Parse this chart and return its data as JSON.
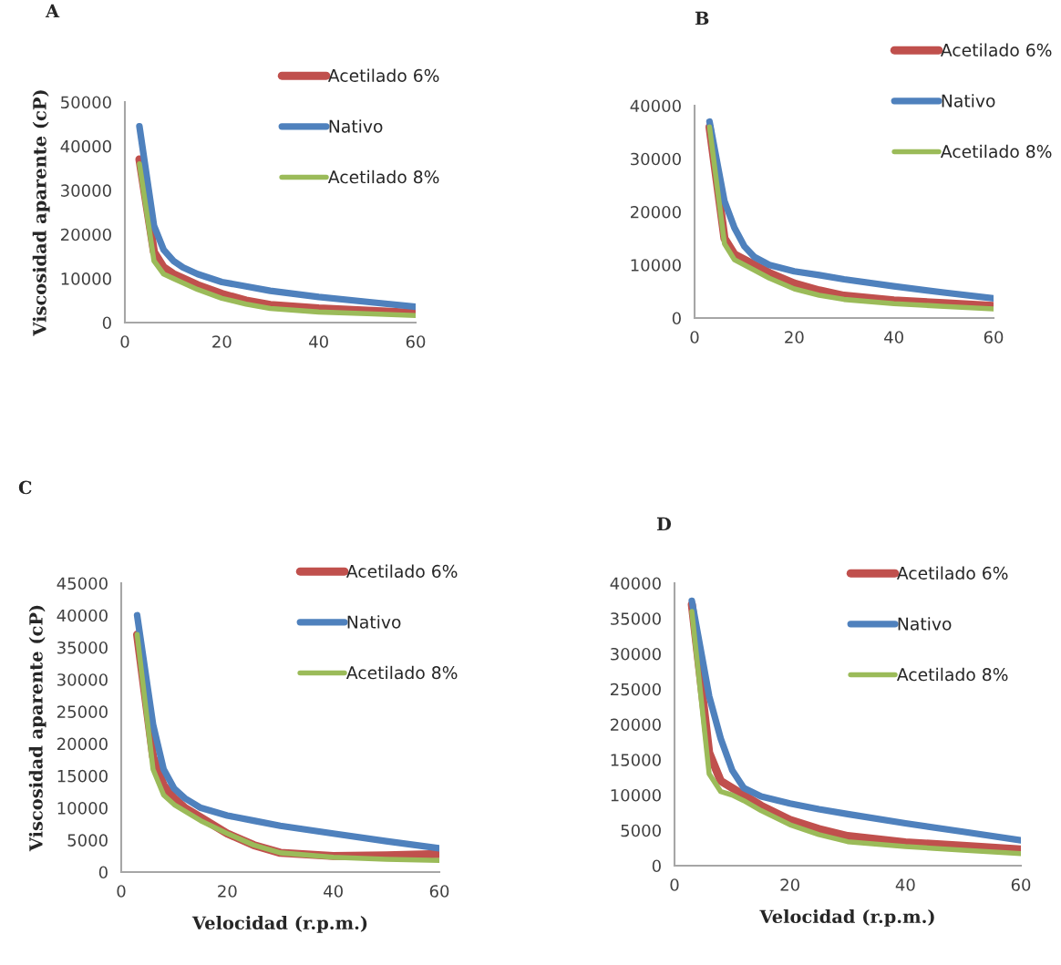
{
  "chart_data": [
    {
      "type": "line",
      "title": "A",
      "ylabel": "Viscosidad aparente (cP)",
      "x": [
        3,
        6,
        8,
        10,
        12,
        15,
        20,
        25,
        30,
        40,
        50,
        60
      ],
      "xlim": [
        0,
        60
      ],
      "xticks": [
        0,
        20,
        40,
        60
      ],
      "ylim": [
        0,
        50000
      ],
      "yticks": [
        0,
        10000,
        20000,
        30000,
        40000,
        50000
      ],
      "legend": "top right",
      "grid": false,
      "marker": "none",
      "line_style": "solid",
      "series": [
        {
          "name": "Acetilado 6%",
          "color": "#c0504d",
          "values": [
            37000,
            16000,
            12500,
            11000,
            10000,
            8500,
            6500,
            5000,
            4000,
            3200,
            2700,
            2200
          ]
        },
        {
          "name": "Nativo",
          "color": "#4f81bd",
          "values": [
            44500,
            22000,
            16500,
            14000,
            12500,
            11000,
            9200,
            8200,
            7200,
            5800,
            4700,
            3600
          ]
        },
        {
          "name": "Acetilado 8%",
          "color": "#9bbb59",
          "values": [
            36000,
            14000,
            11000,
            10000,
            9000,
            7500,
            5500,
            4200,
            3200,
            2400,
            2000,
            1600
          ]
        }
      ]
    },
    {
      "type": "line",
      "title": "B",
      "x": [
        3,
        6,
        8,
        10,
        12,
        15,
        20,
        25,
        30,
        40,
        50,
        60
      ],
      "xlim": [
        0,
        60
      ],
      "xticks": [
        0,
        20,
        40,
        60
      ],
      "ylim": [
        0,
        40000
      ],
      "yticks": [
        0,
        10000,
        20000,
        30000,
        40000
      ],
      "legend": "top right",
      "grid": false,
      "marker": "none",
      "line_style": "solid",
      "series": [
        {
          "name": "Acetilado 6%",
          "color": "#c0504d",
          "values": [
            36000,
            15000,
            12000,
            11000,
            10000,
            8500,
            6500,
            5200,
            4200,
            3300,
            2800,
            2300
          ]
        },
        {
          "name": "Nativo",
          "color": "#4f81bd",
          "values": [
            37000,
            22000,
            17000,
            13500,
            11500,
            10000,
            8800,
            8100,
            7300,
            6000,
            4800,
            3700
          ]
        },
        {
          "name": "Acetilado 8%",
          "color": "#9bbb59",
          "values": [
            36000,
            14000,
            11000,
            10000,
            9000,
            7500,
            5500,
            4300,
            3500,
            2700,
            2200,
            1700
          ]
        }
      ]
    },
    {
      "type": "line",
      "title": "C",
      "ylabel": "Viscosidad aparente (cP)",
      "xlabel": "Velocidad (r.p.m.)",
      "x": [
        3,
        6,
        8,
        10,
        12,
        15,
        20,
        25,
        30,
        40,
        50,
        60
      ],
      "xlim": [
        0,
        60
      ],
      "xticks": [
        0,
        20,
        40,
        60
      ],
      "ylim": [
        0,
        45000
      ],
      "yticks": [
        0,
        5000,
        10000,
        15000,
        20000,
        25000,
        30000,
        35000,
        40000,
        45000
      ],
      "legend": "top right",
      "grid": false,
      "marker": "none",
      "line_style": "solid",
      "series": [
        {
          "name": "Acetilado 6%",
          "color": "#c0504d",
          "values": [
            37000,
            18000,
            13500,
            11500,
            10000,
            8500,
            6000,
            4200,
            3000,
            2500,
            2600,
            2800
          ]
        },
        {
          "name": "Nativo",
          "color": "#4f81bd",
          "values": [
            40000,
            23000,
            16000,
            13000,
            11500,
            10000,
            8800,
            8000,
            7200,
            6000,
            4800,
            3700
          ]
        },
        {
          "name": "Acetilado 8%",
          "color": "#9bbb59",
          "values": [
            37000,
            16000,
            12000,
            10500,
            9500,
            8000,
            6000,
            4200,
            3000,
            2300,
            2000,
            1800
          ]
        }
      ]
    },
    {
      "type": "line",
      "title": "D",
      "xlabel": "Velocidad (r.p.m.)",
      "x": [
        3,
        6,
        8,
        10,
        12,
        15,
        20,
        25,
        30,
        40,
        50,
        60
      ],
      "xlim": [
        0,
        60
      ],
      "xticks": [
        0,
        20,
        40,
        60
      ],
      "ylim": [
        0,
        40000
      ],
      "yticks": [
        0,
        5000,
        10000,
        15000,
        20000,
        25000,
        30000,
        35000,
        40000
      ],
      "legend": "top right",
      "grid": false,
      "marker": "none",
      "line_style": "solid",
      "series": [
        {
          "name": "Acetilado 6%",
          "color": "#c0504d",
          "values": [
            37000,
            16000,
            12000,
            11000,
            10000,
            8500,
            6500,
            5200,
            4200,
            3300,
            2800,
            2300
          ]
        },
        {
          "name": "Nativo",
          "color": "#4f81bd",
          "values": [
            37500,
            24000,
            18000,
            13500,
            11000,
            9800,
            8800,
            8000,
            7300,
            6000,
            4800,
            3600
          ]
        },
        {
          "name": "Acetilado 8%",
          "color": "#9bbb59",
          "values": [
            36000,
            13000,
            10500,
            10000,
            9200,
            7800,
            5800,
            4400,
            3400,
            2700,
            2200,
            1700
          ]
        }
      ]
    }
  ]
}
